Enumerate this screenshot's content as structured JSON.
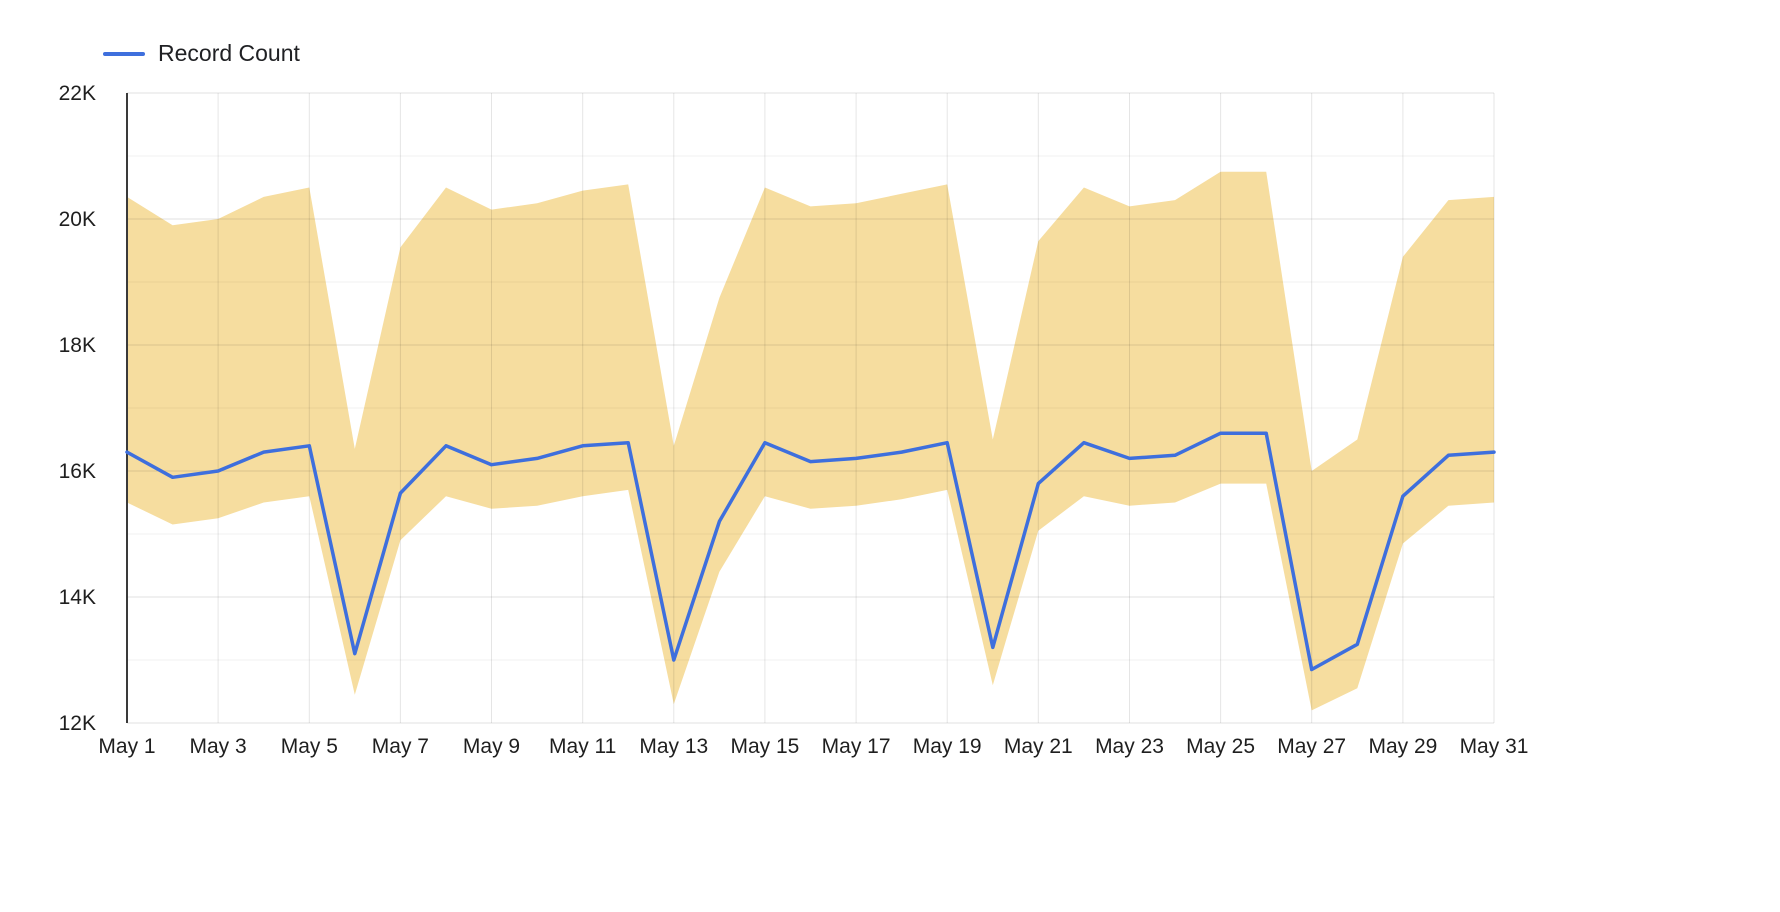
{
  "chart_data": {
    "type": "line",
    "title": "",
    "legend": [
      {
        "label": "Record Count",
        "color": "#3e6fdd"
      }
    ],
    "x_labels": [
      "May 1",
      "May 2",
      "May 3",
      "May 4",
      "May 5",
      "May 6",
      "May 7",
      "May 8",
      "May 9",
      "May 10",
      "May 11",
      "May 12",
      "May 13",
      "May 14",
      "May 15",
      "May 16",
      "May 17",
      "May 18",
      "May 19",
      "May 20",
      "May 21",
      "May 22",
      "May 23",
      "May 24",
      "May 25",
      "May 26",
      "May 27",
      "May 28",
      "May 29",
      "May 30",
      "May 31"
    ],
    "x_tick_every": 2,
    "y_range": [
      12,
      22
    ],
    "y_unit": "K",
    "y_ticks": [
      {
        "value": 12,
        "label": "12K"
      },
      {
        "value": 14,
        "label": "14K"
      },
      {
        "value": 16,
        "label": "16K"
      },
      {
        "value": 18,
        "label": "18K"
      },
      {
        "value": 20,
        "label": "20K"
      },
      {
        "value": 22,
        "label": "22K"
      }
    ],
    "grid": {
      "horizontal": true,
      "vertical": true,
      "minor_horizontal_step": 1
    },
    "legend_position": "top-left",
    "series": [
      {
        "name": "Record Count",
        "color": "#3e6fdd",
        "values": [
          16.3,
          15.9,
          16.0,
          16.3,
          16.4,
          13.1,
          15.65,
          16.4,
          16.1,
          16.2,
          16.4,
          16.45,
          13.0,
          15.2,
          16.45,
          16.15,
          16.2,
          16.3,
          16.45,
          13.2,
          15.8,
          16.45,
          16.2,
          16.25,
          16.6,
          16.6,
          12.85,
          13.25,
          15.6,
          16.25,
          16.3
        ]
      }
    ],
    "band": {
      "name": "range-band",
      "color": "#f6dd9f",
      "upper": [
        20.35,
        19.9,
        20.0,
        20.35,
        20.5,
        16.35,
        19.55,
        20.5,
        20.15,
        20.25,
        20.45,
        20.55,
        16.4,
        18.75,
        20.5,
        20.2,
        20.25,
        20.4,
        20.55,
        16.5,
        19.65,
        20.5,
        20.2,
        20.3,
        20.75,
        20.75,
        16.0,
        16.5,
        19.4,
        20.3,
        20.35
      ],
      "lower": [
        15.5,
        15.15,
        15.25,
        15.5,
        15.6,
        12.45,
        14.9,
        15.6,
        15.4,
        15.45,
        15.6,
        15.7,
        12.3,
        14.4,
        15.6,
        15.4,
        15.45,
        15.55,
        15.7,
        12.6,
        15.05,
        15.6,
        15.45,
        15.5,
        15.8,
        15.8,
        12.2,
        12.55,
        14.85,
        15.45,
        15.5
      ]
    }
  }
}
